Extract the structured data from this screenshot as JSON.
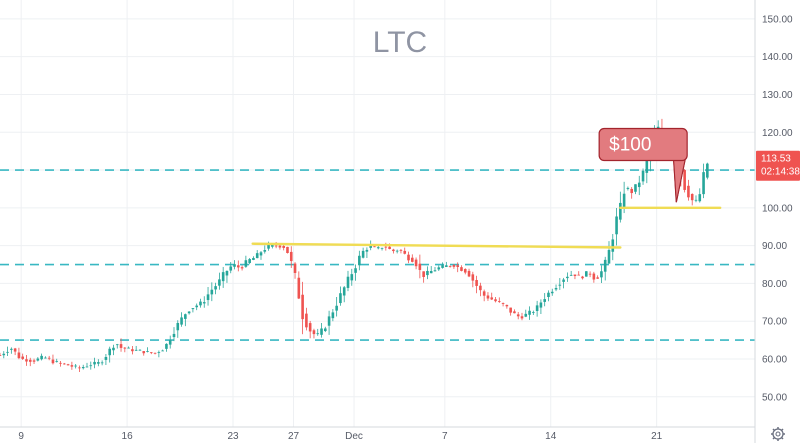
{
  "chart_data": {
    "type": "candlestick",
    "title": "LTC",
    "ylim": [
      42,
      155
    ],
    "y_ticks": [
      "150.00",
      "140.00",
      "130.00",
      "120.00",
      "110.00",
      "100.00",
      "90.00",
      "80.00",
      "70.00",
      "60.00",
      "50.00"
    ],
    "y_tick_values": [
      150,
      140,
      130,
      120,
      110,
      100,
      90,
      80,
      70,
      60,
      50
    ],
    "x_ticks": [
      "9",
      "16",
      "23",
      "27",
      "Dec",
      "7",
      "14",
      "21"
    ],
    "x_tick_values": [
      0,
      7,
      14,
      18,
      22,
      28,
      35,
      42
    ],
    "x_range": [
      -1.4,
      48.5
    ],
    "current_price": "113.53",
    "countdown": "02:14:38",
    "series_points": [
      [
        -1.4,
        61
      ],
      [
        -0.7,
        63
      ],
      [
        0,
        60
      ],
      [
        0.8,
        59.5
      ],
      [
        1.5,
        60.5
      ],
      [
        2.3,
        59
      ],
      [
        3,
        58.5
      ],
      [
        3.8,
        57.5
      ],
      [
        4.5,
        58.5
      ],
      [
        5.2,
        59
      ],
      [
        5.8,
        62
      ],
      [
        6.2,
        64.5
      ],
      [
        6.6,
        63
      ],
      [
        7.2,
        62.5
      ],
      [
        8,
        62
      ],
      [
        8.8,
        61.5
      ],
      [
        9.5,
        63
      ],
      [
        10,
        67
      ],
      [
        10.5,
        70
      ],
      [
        11,
        73
      ],
      [
        11.5,
        74
      ],
      [
        12,
        75
      ],
      [
        12.5,
        78
      ],
      [
        13,
        80
      ],
      [
        13.5,
        83
      ],
      [
        14,
        85
      ],
      [
        14.5,
        84
      ],
      [
        15,
        86
      ],
      [
        15.5,
        87
      ],
      [
        16,
        89
      ],
      [
        16.5,
        90
      ],
      [
        17,
        90
      ],
      [
        17.5,
        89.5
      ],
      [
        17.8,
        86
      ],
      [
        18.2,
        80
      ],
      [
        18.6,
        72
      ],
      [
        19,
        68
      ],
      [
        19.5,
        66
      ],
      [
        20,
        68
      ],
      [
        20.5,
        72
      ],
      [
        21,
        76
      ],
      [
        21.5,
        80
      ],
      [
        22,
        84
      ],
      [
        22.5,
        88
      ],
      [
        23,
        90
      ],
      [
        23.5,
        89
      ],
      [
        24,
        90
      ],
      [
        24.5,
        88.5
      ],
      [
        25,
        89
      ],
      [
        25.5,
        87
      ],
      [
        26,
        86
      ],
      [
        26.5,
        82
      ],
      [
        27,
        83
      ],
      [
        27.5,
        84
      ],
      [
        28,
        84.5
      ],
      [
        28.5,
        85
      ],
      [
        29,
        84
      ],
      [
        29.5,
        83
      ],
      [
        30,
        80
      ],
      [
        30.5,
        77
      ],
      [
        31,
        76
      ],
      [
        31.5,
        75
      ],
      [
        32,
        74
      ],
      [
        32.5,
        72
      ],
      [
        33,
        71
      ],
      [
        33.5,
        72
      ],
      [
        34,
        73
      ],
      [
        34.5,
        76
      ],
      [
        35,
        78
      ],
      [
        35.5,
        80
      ],
      [
        36,
        82
      ],
      [
        36.5,
        82.5
      ],
      [
        37,
        81.5
      ],
      [
        37.5,
        83
      ],
      [
        38,
        81
      ],
      [
        38.5,
        84
      ],
      [
        38.9,
        89
      ],
      [
        39.2,
        95
      ],
      [
        39.6,
        100
      ],
      [
        39.9,
        106
      ],
      [
        40.3,
        104
      ],
      [
        40.7,
        106
      ],
      [
        41,
        108
      ],
      [
        41.4,
        113
      ],
      [
        41.8,
        118
      ],
      [
        42.1,
        121
      ],
      [
        42.4,
        118.5
      ],
      [
        42.7,
        119.5
      ],
      [
        43,
        116
      ],
      [
        43.3,
        117
      ],
      [
        43.6,
        110
      ],
      [
        43.9,
        105
      ],
      [
        44.2,
        103
      ],
      [
        44.5,
        101
      ],
      [
        44.9,
        104
      ],
      [
        45.2,
        110
      ],
      [
        45.5,
        113.5
      ]
    ],
    "horizontal_levels": [
      {
        "value": 110,
        "style": "dashed",
        "color": "#39b8c2"
      },
      {
        "value": 85,
        "style": "dashed",
        "color": "#39b8c2"
      },
      {
        "value": 65,
        "style": "dashed",
        "color": "#39b8c2"
      }
    ],
    "trend_lines": [
      {
        "x1": 15.3,
        "y1": 90.5,
        "x2": 39.6,
        "y2": 89.5,
        "color": "#f0dc54"
      },
      {
        "x1": 39.6,
        "y1": 100,
        "x2": 46.2,
        "y2": 100,
        "color": "#f0dc54"
      }
    ],
    "annotation": {
      "text": "$100",
      "x": 38.2,
      "y": 121,
      "target_x": 43.3,
      "target_y": 101.5
    },
    "colors": {
      "up": "#26a69a",
      "down": "#ef5350",
      "grid": "#eef0f3",
      "accent": "#ef5350"
    }
  }
}
